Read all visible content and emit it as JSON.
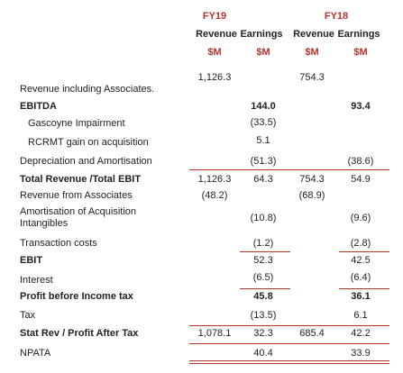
{
  "table": {
    "groups": [
      "FY19",
      "FY18"
    ],
    "subheaders": [
      "Revenue",
      "Earnings",
      "Revenue",
      "Earnings"
    ],
    "units": [
      "$M",
      "$M",
      "$M",
      "$M"
    ],
    "rows": [
      {
        "label": null,
        "cells": [
          "1,126.3",
          null,
          "754.3",
          null
        ]
      },
      {
        "label": "Revenue including Associates.",
        "cells": [
          null,
          null,
          null,
          null
        ]
      },
      {
        "label": "EBITDA",
        "bold": true,
        "cells": [
          null,
          "144.0",
          null,
          "93.4"
        ],
        "bold_cells": true
      },
      {
        "label": "Gascoyne Impairment",
        "indent": true,
        "cells": [
          null,
          "(33.5)",
          null,
          null
        ]
      },
      {
        "label": "RCRMT gain on acquisition",
        "indent": true,
        "cells": [
          null,
          "5.1",
          null,
          null
        ]
      },
      {
        "label": "Depreciation and Amortisation",
        "cells": [
          null,
          "(51.3)",
          null,
          "(38.6)"
        ]
      },
      {
        "label": "Total Revenue /Total EBIT",
        "bold": true,
        "cells": [
          "1,126.3",
          "64.3",
          "754.3",
          "54.9"
        ]
      },
      {
        "label": "Revenue from Associates",
        "cells": [
          "(48.2)",
          null,
          "(68.9)",
          null
        ]
      },
      {
        "label": "Amortisation of Acquisition Intangibles",
        "cells": [
          null,
          "(10.8)",
          null,
          "(9.6)"
        ]
      },
      {
        "label": "Transaction costs",
        "cells": [
          null,
          "(1.2)",
          null,
          "(2.8)"
        ]
      },
      {
        "label": "EBIT",
        "bold": true,
        "cells": [
          null,
          "52.3",
          null,
          "42.5"
        ]
      },
      {
        "label": "Interest",
        "cells": [
          null,
          "(6.5)",
          null,
          "(6.4)"
        ]
      },
      {
        "label": "Profit before Income tax",
        "bold": true,
        "cells": [
          null,
          "45.8",
          null,
          "36.1"
        ],
        "bold_cells": true
      },
      {
        "label": "Tax",
        "cells": [
          null,
          "(13.5)",
          null,
          "6.1"
        ]
      },
      {
        "label": "Stat Rev / Profit After Tax",
        "bold": true,
        "cells": [
          "1,078.1",
          "32.3",
          "685.4",
          "42.2"
        ]
      },
      {
        "label": "NPATA",
        "cells": [
          null,
          "40.4",
          null,
          "33.9"
        ]
      }
    ]
  }
}
